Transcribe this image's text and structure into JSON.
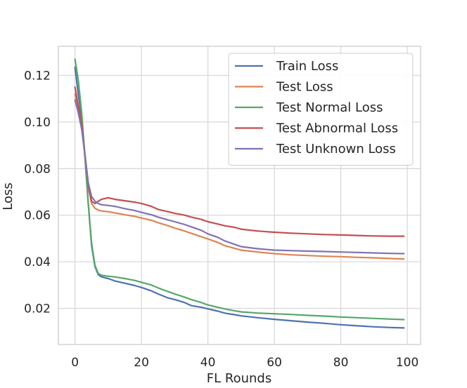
{
  "chart_data": {
    "type": "line",
    "title": "",
    "xlabel": "FL Rounds",
    "ylabel": "Loss",
    "xlim": [
      -5,
      104
    ],
    "ylim": [
      0.0045,
      0.1325
    ],
    "xticks": [
      0,
      20,
      40,
      60,
      80,
      100
    ],
    "xtick_labels": [
      "0",
      "20",
      "40",
      "60",
      "80",
      "100"
    ],
    "yticks": [
      0.02,
      0.04,
      0.06,
      0.08,
      0.1,
      0.12
    ],
    "ytick_labels": [
      "0.02",
      "0.04",
      "0.06",
      "0.08",
      "0.10",
      "0.12"
    ],
    "grid": true,
    "legend_position": "top-right",
    "series": [
      {
        "name": "Train Loss",
        "color": "#4c72b0",
        "points": [
          [
            0,
            0.1235
          ],
          [
            1,
            0.112
          ],
          [
            2,
            0.102
          ],
          [
            3,
            0.085
          ],
          [
            4,
            0.065
          ],
          [
            5,
            0.047
          ],
          [
            6,
            0.038
          ],
          [
            7,
            0.0345
          ],
          [
            8,
            0.0335
          ],
          [
            10,
            0.0328
          ],
          [
            12,
            0.0318
          ],
          [
            15,
            0.0308
          ],
          [
            18,
            0.0298
          ],
          [
            20,
            0.029
          ],
          [
            23,
            0.0275
          ],
          [
            25,
            0.0262
          ],
          [
            28,
            0.0245
          ],
          [
            30,
            0.0238
          ],
          [
            33,
            0.0225
          ],
          [
            35,
            0.0212
          ],
          [
            38,
            0.0205
          ],
          [
            40,
            0.0198
          ],
          [
            43,
            0.0188
          ],
          [
            45,
            0.018
          ],
          [
            48,
            0.0173
          ],
          [
            50,
            0.0168
          ],
          [
            55,
            0.016
          ],
          [
            60,
            0.0153
          ],
          [
            65,
            0.0147
          ],
          [
            70,
            0.0141
          ],
          [
            75,
            0.0136
          ],
          [
            80,
            0.013
          ],
          [
            85,
            0.0125
          ],
          [
            90,
            0.0121
          ],
          [
            95,
            0.0118
          ],
          [
            99,
            0.0116
          ]
        ]
      },
      {
        "name": "Test Loss",
        "color": "#dd8452",
        "points": [
          [
            0,
            0.112
          ],
          [
            1,
            0.106
          ],
          [
            2,
            0.099
          ],
          [
            3,
            0.085
          ],
          [
            4,
            0.072
          ],
          [
            5,
            0.065
          ],
          [
            6,
            0.063
          ],
          [
            7,
            0.0622
          ],
          [
            8,
            0.0618
          ],
          [
            10,
            0.0615
          ],
          [
            12,
            0.061
          ],
          [
            15,
            0.0602
          ],
          [
            18,
            0.0595
          ],
          [
            20,
            0.0588
          ],
          [
            23,
            0.0578
          ],
          [
            25,
            0.0568
          ],
          [
            28,
            0.0555
          ],
          [
            30,
            0.0545
          ],
          [
            33,
            0.0532
          ],
          [
            35,
            0.0522
          ],
          [
            38,
            0.0508
          ],
          [
            40,
            0.0498
          ],
          [
            43,
            0.0483
          ],
          [
            45,
            0.047
          ],
          [
            48,
            0.0458
          ],
          [
            50,
            0.045
          ],
          [
            55,
            0.0442
          ],
          [
            60,
            0.0435
          ],
          [
            65,
            0.043
          ],
          [
            70,
            0.0427
          ],
          [
            75,
            0.0424
          ],
          [
            80,
            0.0422
          ],
          [
            85,
            0.0419
          ],
          [
            90,
            0.0417
          ],
          [
            95,
            0.0414
          ],
          [
            99,
            0.0412
          ]
        ]
      },
      {
        "name": "Test Normal Loss",
        "color": "#55a868",
        "points": [
          [
            0,
            0.127
          ],
          [
            1,
            0.118
          ],
          [
            2,
            0.104
          ],
          [
            3,
            0.085
          ],
          [
            4,
            0.065
          ],
          [
            5,
            0.048
          ],
          [
            6,
            0.0385
          ],
          [
            7,
            0.035
          ],
          [
            8,
            0.0342
          ],
          [
            10,
            0.0338
          ],
          [
            12,
            0.0335
          ],
          [
            15,
            0.0328
          ],
          [
            18,
            0.032
          ],
          [
            20,
            0.0312
          ],
          [
            23,
            0.03
          ],
          [
            25,
            0.0288
          ],
          [
            28,
            0.0272
          ],
          [
            30,
            0.0262
          ],
          [
            33,
            0.0248
          ],
          [
            35,
            0.0238
          ],
          [
            38,
            0.0225
          ],
          [
            40,
            0.0215
          ],
          [
            43,
            0.0205
          ],
          [
            45,
            0.0198
          ],
          [
            48,
            0.019
          ],
          [
            50,
            0.0185
          ],
          [
            55,
            0.018
          ],
          [
            60,
            0.0177
          ],
          [
            65,
            0.0174
          ],
          [
            70,
            0.017
          ],
          [
            75,
            0.0167
          ],
          [
            80,
            0.0163
          ],
          [
            85,
            0.016
          ],
          [
            90,
            0.0157
          ],
          [
            95,
            0.0154
          ],
          [
            99,
            0.0152
          ]
        ]
      },
      {
        "name": "Test Abnormal Loss",
        "color": "#c44e52",
        "points": [
          [
            0,
            0.115
          ],
          [
            1,
            0.107
          ],
          [
            2,
            0.0995
          ],
          [
            3,
            0.086
          ],
          [
            4,
            0.073
          ],
          [
            5,
            0.066
          ],
          [
            6,
            0.065
          ],
          [
            7,
            0.066
          ],
          [
            8,
            0.0668
          ],
          [
            10,
            0.0675
          ],
          [
            12,
            0.0668
          ],
          [
            15,
            0.0662
          ],
          [
            18,
            0.0656
          ],
          [
            20,
            0.065
          ],
          [
            23,
            0.0638
          ],
          [
            25,
            0.0625
          ],
          [
            28,
            0.0615
          ],
          [
            30,
            0.0608
          ],
          [
            33,
            0.06
          ],
          [
            35,
            0.0592
          ],
          [
            38,
            0.0582
          ],
          [
            40,
            0.0572
          ],
          [
            43,
            0.0562
          ],
          [
            45,
            0.0555
          ],
          [
            48,
            0.0548
          ],
          [
            50,
            0.054
          ],
          [
            55,
            0.0532
          ],
          [
            60,
            0.0527
          ],
          [
            65,
            0.0523
          ],
          [
            70,
            0.052
          ],
          [
            75,
            0.0517
          ],
          [
            80,
            0.0515
          ],
          [
            85,
            0.0513
          ],
          [
            90,
            0.0511
          ],
          [
            95,
            0.051
          ],
          [
            99,
            0.051
          ]
        ]
      },
      {
        "name": "Test Unknown Loss",
        "color": "#8172b3",
        "points": [
          [
            0,
            0.1095
          ],
          [
            1,
            0.104
          ],
          [
            2,
            0.097
          ],
          [
            3,
            0.086
          ],
          [
            4,
            0.074
          ],
          [
            5,
            0.068
          ],
          [
            6,
            0.066
          ],
          [
            7,
            0.065
          ],
          [
            8,
            0.0645
          ],
          [
            10,
            0.0642
          ],
          [
            12,
            0.0638
          ],
          [
            15,
            0.0628
          ],
          [
            18,
            0.062
          ],
          [
            20,
            0.0612
          ],
          [
            23,
            0.0602
          ],
          [
            25,
            0.0592
          ],
          [
            28,
            0.058
          ],
          [
            30,
            0.0572
          ],
          [
            33,
            0.056
          ],
          [
            35,
            0.055
          ],
          [
            38,
            0.0535
          ],
          [
            40,
            0.052
          ],
          [
            43,
            0.0505
          ],
          [
            45,
            0.049
          ],
          [
            48,
            0.0475
          ],
          [
            50,
            0.0465
          ],
          [
            55,
            0.0456
          ],
          [
            60,
            0.045
          ],
          [
            65,
            0.0448
          ],
          [
            70,
            0.0446
          ],
          [
            75,
            0.0444
          ],
          [
            80,
            0.0442
          ],
          [
            85,
            0.044
          ],
          [
            90,
            0.0438
          ],
          [
            95,
            0.0436
          ],
          [
            99,
            0.0435
          ]
        ]
      }
    ]
  }
}
